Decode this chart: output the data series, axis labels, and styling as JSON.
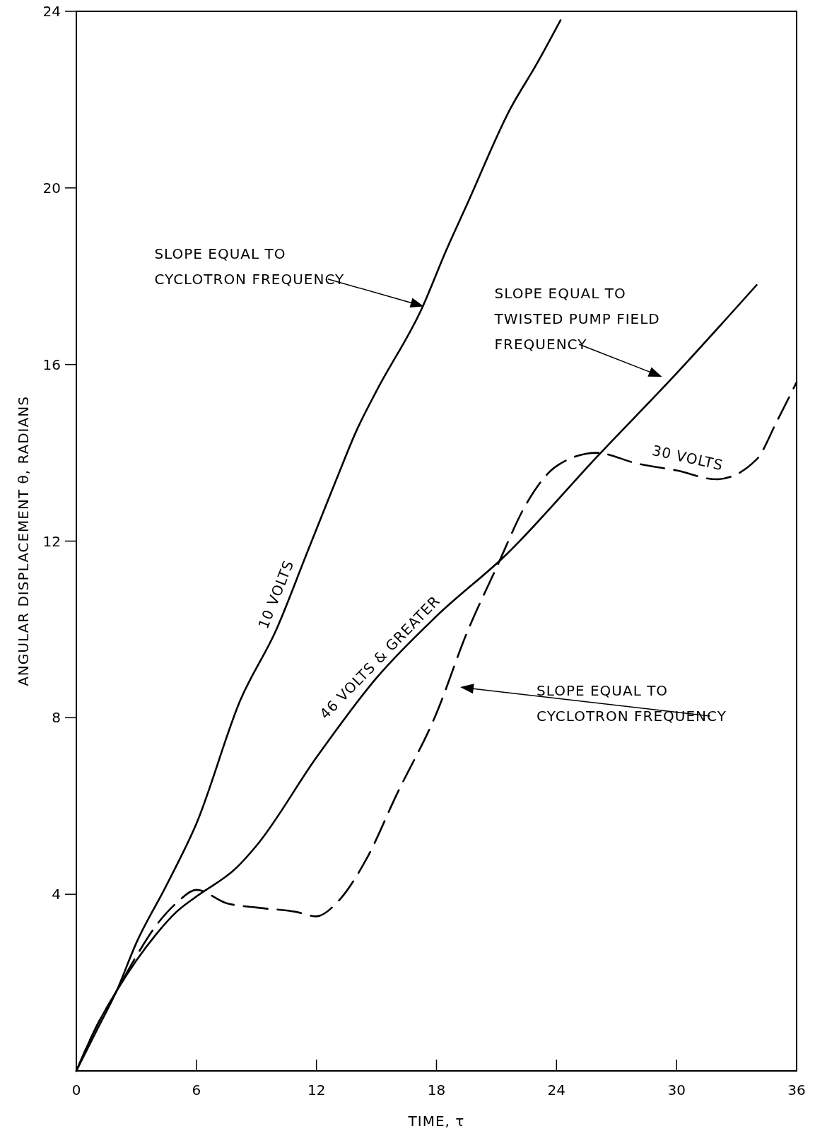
{
  "chart_data": {
    "type": "line",
    "xlabel": "TIME, τ",
    "ylabel": "ANGULAR DISPLACEMENT θ, RADIANS",
    "xlim": [
      0,
      36
    ],
    "ylim": [
      0,
      24
    ],
    "xticks": [
      0,
      6,
      12,
      18,
      24,
      30,
      36
    ],
    "yticks": [
      4,
      8,
      12,
      16,
      20,
      24
    ],
    "series": [
      {
        "name": "10 VOLTS",
        "color": "#000000",
        "line_style": "solid",
        "x": [
          0,
          1,
          2,
          3,
          4.5,
          6,
          8.2,
          10,
          11.5,
          13,
          14,
          15,
          17.3,
          18.5,
          19.5,
          21.7,
          23,
          24.2
        ],
        "values": [
          0,
          0.9,
          1.8,
          2.9,
          4.2,
          5.6,
          8.4,
          10,
          11.7,
          13.4,
          14.5,
          15.4,
          17.3,
          18.6,
          19.6,
          21.8,
          22.8,
          23.8
        ]
      },
      {
        "name": "46 VOLTS & GREATER",
        "color": "#000000",
        "line_style": "solid",
        "x": [
          0,
          1,
          2,
          3,
          4,
          5,
          6,
          8,
          9,
          12,
          15,
          18,
          21.5,
          26,
          30,
          34
        ],
        "values": [
          0,
          1,
          1.8,
          2.5,
          3.1,
          3.6,
          3.95,
          4.6,
          5.1,
          7.1,
          8.9,
          10.3,
          11.7,
          13.9,
          15.8,
          17.8
        ]
      },
      {
        "name": "30 VOLTS",
        "color": "#000000",
        "line_style": "dashed",
        "x": [
          0,
          1,
          2,
          3,
          4,
          5,
          6,
          7.5,
          9,
          11,
          12,
          13,
          14.5,
          16,
          18,
          19.5,
          21,
          22.5,
          24,
          26,
          28,
          30,
          32,
          34,
          35,
          36
        ],
        "values": [
          0,
          1,
          1.8,
          2.6,
          3.3,
          3.8,
          4.1,
          3.8,
          3.7,
          3.6,
          3.5,
          3.8,
          4.8,
          6.25,
          8.1,
          9.9,
          11.4,
          12.85,
          13.7,
          14.0,
          13.76,
          13.6,
          13.4,
          13.85,
          14.7,
          15.6
        ]
      }
    ],
    "annotations": [
      "SLOPE EQUAL TO\nCYCLOTRON FREQUENCY",
      "SLOPE EQUAL TO\nTWISTED PUMP FIELD\nFREQUENCY",
      "SLOPE EQUAL TO\nCYCLOTRON FREQUENCY"
    ]
  }
}
